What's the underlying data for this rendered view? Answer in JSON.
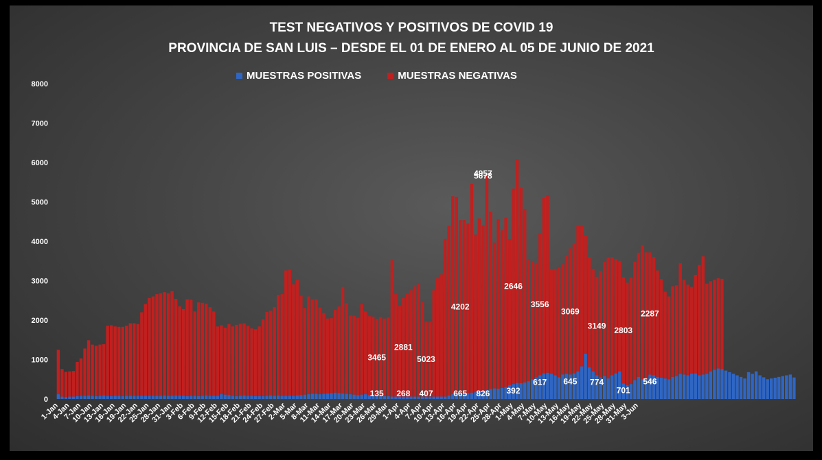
{
  "chart_data": {
    "type": "bar",
    "stacked": true,
    "title": "TEST NEGATIVOS Y POSITIVOS  DE COVID 19",
    "subtitle": "PROVINCIA DE SAN LUIS – DESDE EL 01 DE ENERO  AL 05 DE JUNIO DE 2021",
    "ylim": [
      0,
      8000
    ],
    "yticks": [
      0,
      1000,
      2000,
      3000,
      4000,
      5000,
      6000,
      7000,
      8000
    ],
    "grid": false,
    "legend_position": "top",
    "tick_labels": [
      "1-Jan",
      "4-Jan",
      "7-Jan",
      "10-Jan",
      "13-Jan",
      "16-Jan",
      "19-Jan",
      "22-Jan",
      "25-Jan",
      "28-Jan",
      "31-Jan",
      "3-Feb",
      "6-Feb",
      "9-Feb",
      "12-Feb",
      "15-Feb",
      "18-Feb",
      "21-Feb",
      "24-Feb",
      "27-Feb",
      "2-Mar",
      "5-Mar",
      "8-Mar",
      "11-Mar",
      "14-Mar",
      "17-Mar",
      "20-Mar",
      "23-Mar",
      "26-Mar",
      "29-Mar",
      "1-Apr",
      "4-Apr",
      "7-Apr",
      "10-Apr",
      "13-Apr",
      "16-Apr",
      "19-Apr",
      "22-Apr",
      "25-Apr",
      "28-Apr",
      "1-May",
      "4-May",
      "7-May",
      "10-May",
      "13-May",
      "16-May",
      "19-May",
      "22-May",
      "25-May",
      "28-May",
      "31-May",
      "3-Jun"
    ],
    "series": [
      {
        "name": "MUESTRAS  POSITIVAS",
        "color": "#2f66c4",
        "values": [
          120,
          60,
          50,
          60,
          60,
          70,
          80,
          80,
          90,
          80,
          70,
          80,
          90,
          80,
          70,
          80,
          80,
          70,
          80,
          80,
          80,
          80,
          80,
          80,
          80,
          80,
          80,
          80,
          90,
          80,
          80,
          90,
          90,
          80,
          70,
          80,
          80,
          70,
          80,
          90,
          80,
          80,
          80,
          120,
          110,
          100,
          80,
          70,
          80,
          90,
          80,
          80,
          70,
          70,
          70,
          80,
          90,
          80,
          90,
          80,
          80,
          80,
          80,
          90,
          100,
          110,
          120,
          130,
          130,
          120,
          130,
          140,
          150,
          160,
          150,
          140,
          130,
          120,
          110,
          100,
          110,
          120,
          100,
          90,
          80,
          80,
          70,
          70,
          60,
          60,
          60,
          60,
          60,
          60,
          60,
          60,
          60,
          60,
          60,
          60,
          60,
          60,
          60,
          90,
          120,
          130,
          135,
          140,
          150,
          160,
          170,
          180,
          200,
          230,
          250,
          268,
          260,
          280,
          300,
          350,
          380,
          407,
          400,
          420,
          450,
          500,
          550,
          600,
          650,
          665,
          640,
          600,
          550,
          620,
          640,
          620,
          650,
          700,
          826,
          1150,
          800,
          700,
          600,
          550,
          580,
          520,
          600,
          650,
          700,
          392,
          350,
          380,
          480,
          560,
          500,
          520,
          617,
          600,
          560,
          540,
          520,
          500,
          560,
          580,
          640,
          620,
          600,
          645,
          650,
          600,
          620,
          640,
          700,
          740,
          774,
          760,
          720,
          680,
          640,
          600,
          560,
          520,
          680,
          640,
          701,
          600,
          550,
          500,
          520,
          540,
          560,
          580,
          600,
          620,
          546
        ]
      },
      {
        "name": "MUESTRAS  NEGATIVAS",
        "color": "#c0201f",
        "values": [
          1130,
          700,
          640,
          640,
          650,
          870,
          950,
          1200,
          1400,
          1300,
          1280,
          1300,
          1300,
          1780,
          1800,
          1760,
          1750,
          1760,
          1780,
          1840,
          1840,
          1820,
          2120,
          2330,
          2480,
          2520,
          2580,
          2600,
          2620,
          2600,
          2660,
          2450,
          2260,
          2200,
          2460,
          2440,
          2140,
          2380,
          2360,
          2330,
          2250,
          2140,
          1760,
          1750,
          1700,
          1800,
          1760,
          1810,
          1830,
          1830,
          1780,
          1710,
          1700,
          1770,
          1950,
          2130,
          2150,
          2250,
          2550,
          2580,
          3180,
          3200,
          2830,
          2930,
          2520,
          2200,
          2480,
          2390,
          2400,
          2200,
          2050,
          1900,
          1900,
          2100,
          2200,
          2700,
          2300,
          2000,
          2000,
          1960,
          2300,
          2100,
          2000,
          2000,
          1950,
          2000,
          1970,
          2000,
          3465,
          2600,
          2300,
          2500,
          2600,
          2700,
          2800,
          2881,
          2400,
          1900,
          1900,
          2700,
          3000,
          3100,
          4000,
          4300,
          5023,
          5000,
          4400,
          4400,
          4300,
          5300,
          4000,
          4400,
          4202,
          5500,
          4500,
          3700,
          4300,
          4000,
          4300,
          3700,
          4957,
          5678,
          4957,
          4400,
          3100,
          3000,
          2900,
          3600,
          4450,
          4500,
          2646,
          2700,
          2800,
          2800,
          3000,
          3200,
          3300,
          3700,
          3556,
          3000,
          2800,
          2600,
          2500,
          2700,
          2900,
          3069,
          3000,
          2900,
          2800,
          2700,
          2600,
          2700,
          3000,
          3149,
          3400,
          3200,
          3100,
          3000,
          2700,
          2500,
          2200,
          2100,
          2300,
          2300,
          2803,
          2400,
          2300,
          2200,
          2500,
          2800,
          3000,
          2287,
          2287,
          2287,
          2287,
          2287
        ]
      }
    ],
    "annotations": [
      {
        "text": "135",
        "day": 84,
        "series": "positive"
      },
      {
        "text": "268",
        "day": 91,
        "series": "positive"
      },
      {
        "text": "407",
        "day": 97,
        "series": "positive"
      },
      {
        "text": "665",
        "day": 106,
        "series": "positive"
      },
      {
        "text": "826",
        "day": 112,
        "series": "positive"
      },
      {
        "text": "392",
        "day": 120,
        "series": "positive"
      },
      {
        "text": "617",
        "day": 127,
        "series": "positive"
      },
      {
        "text": "645",
        "day": 135,
        "series": "positive"
      },
      {
        "text": "774",
        "day": 142,
        "series": "positive"
      },
      {
        "text": "701",
        "day": 149,
        "series": "positive"
      },
      {
        "text": "546",
        "day": 156,
        "series": "positive"
      },
      {
        "text": "3465",
        "day": 84,
        "series": "negative"
      },
      {
        "text": "2881",
        "day": 91,
        "series": "negative"
      },
      {
        "text": "5023",
        "day": 97,
        "series": "negative"
      },
      {
        "text": "4202",
        "day": 106,
        "series": "negative"
      },
      {
        "text": "4957",
        "day": 112,
        "series": "negative"
      },
      {
        "text": "5678",
        "day": 112,
        "series": "negative"
      },
      {
        "text": "2646",
        "day": 120,
        "series": "negative"
      },
      {
        "text": "3556",
        "day": 127,
        "series": "negative"
      },
      {
        "text": "3069",
        "day": 135,
        "series": "negative"
      },
      {
        "text": "3149",
        "day": 142,
        "series": "negative"
      },
      {
        "text": "2803",
        "day": 149,
        "series": "negative"
      },
      {
        "text": "2287",
        "day": 156,
        "series": "negative"
      }
    ]
  }
}
